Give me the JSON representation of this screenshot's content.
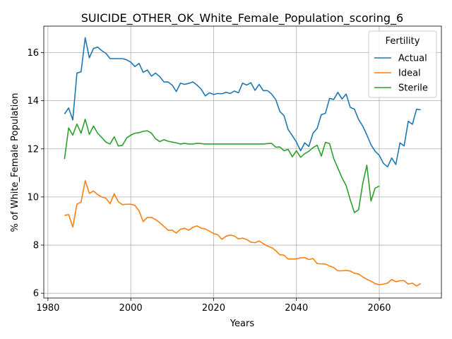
{
  "chart_data": {
    "type": "line",
    "title": "SUICIDE_OTHER_OK_White_Female_Population_scoring_6",
    "xlabel": "Years",
    "ylabel": "% of White_Female Population",
    "xlim": [
      1979,
      2075
    ],
    "ylim": [
      5.8,
      17.1
    ],
    "xticks": [
      1980,
      2000,
      2020,
      2040,
      2060
    ],
    "yticks": [
      6,
      8,
      10,
      12,
      14,
      16
    ],
    "grid": true,
    "legend": {
      "title": "Fertility",
      "placement": "top-right"
    },
    "x_start": 1984,
    "series": [
      {
        "name": "Actual",
        "color": "#1f77b4",
        "values": [
          13.45,
          13.7,
          13.2,
          15.15,
          15.2,
          16.62,
          15.78,
          16.17,
          16.23,
          16.08,
          15.97,
          15.75,
          15.75,
          15.75,
          15.75,
          15.7,
          15.6,
          15.42,
          15.55,
          15.18,
          15.28,
          15.02,
          15.15,
          15.0,
          14.78,
          14.78,
          14.65,
          14.38,
          14.73,
          14.68,
          14.72,
          14.78,
          14.65,
          14.48,
          14.2,
          14.33,
          14.26,
          14.3,
          14.29,
          14.35,
          14.3,
          14.4,
          14.33,
          14.73,
          14.65,
          14.75,
          14.43,
          14.68,
          14.42,
          14.42,
          14.28,
          14.05,
          13.55,
          13.38,
          12.8,
          12.55,
          12.28,
          11.92,
          12.25,
          12.1,
          12.65,
          12.85,
          13.42,
          13.48,
          14.1,
          14.05,
          14.35,
          14.07,
          14.28,
          13.72,
          13.65,
          13.22,
          12.95,
          12.58,
          12.17,
          11.9,
          11.73,
          11.4,
          11.25,
          11.62,
          11.35,
          12.25,
          12.12,
          13.15,
          13.02,
          13.65,
          13.62
        ]
      },
      {
        "name": "Ideal",
        "color": "#ff7f0e",
        "values": [
          9.23,
          9.27,
          8.75,
          9.7,
          9.78,
          10.68,
          10.15,
          10.25,
          10.1,
          10.0,
          9.95,
          9.72,
          10.13,
          9.8,
          9.68,
          9.7,
          9.7,
          9.65,
          9.42,
          8.98,
          9.15,
          9.15,
          9.06,
          8.93,
          8.78,
          8.62,
          8.62,
          8.5,
          8.66,
          8.7,
          8.62,
          8.74,
          8.8,
          8.7,
          8.67,
          8.58,
          8.48,
          8.43,
          8.24,
          8.37,
          8.42,
          8.38,
          8.26,
          8.29,
          8.23,
          8.12,
          8.1,
          8.17,
          8.06,
          7.96,
          7.9,
          7.77,
          7.6,
          7.58,
          7.42,
          7.42,
          7.43,
          7.47,
          7.48,
          7.4,
          7.44,
          7.23,
          7.22,
          7.21,
          7.13,
          7.07,
          6.93,
          6.93,
          6.95,
          6.92,
          6.83,
          6.8,
          6.68,
          6.58,
          6.5,
          6.4,
          6.35,
          6.38,
          6.42,
          6.57,
          6.48,
          6.52,
          6.52,
          6.38,
          6.42,
          6.3,
          6.4
        ]
      },
      {
        "name": "Sterile",
        "color": "#2ca02c",
        "values": [
          11.58,
          12.87,
          12.57,
          13.03,
          12.65,
          13.23,
          12.6,
          12.95,
          12.65,
          12.47,
          12.28,
          12.2,
          12.5,
          12.12,
          12.15,
          12.45,
          12.57,
          12.65,
          12.67,
          12.73,
          12.75,
          12.65,
          12.42,
          12.3,
          12.38,
          12.32,
          12.28,
          12.25,
          12.2,
          12.23,
          12.2,
          12.2,
          12.23,
          12.22,
          12.2,
          12.2,
          12.2,
          12.2,
          12.2,
          12.2,
          12.2,
          12.2,
          12.2,
          12.2,
          12.2,
          12.2,
          12.2,
          12.2,
          12.2,
          12.22,
          12.23,
          12.07,
          12.08,
          11.92,
          11.98,
          11.67,
          11.92,
          11.65,
          11.8,
          11.9,
          12.05,
          12.15,
          11.7,
          12.27,
          12.22,
          11.6,
          11.2,
          10.8,
          10.47,
          9.88,
          9.35,
          9.47,
          10.55,
          11.32,
          9.83,
          10.37,
          10.45
        ]
      }
    ]
  }
}
